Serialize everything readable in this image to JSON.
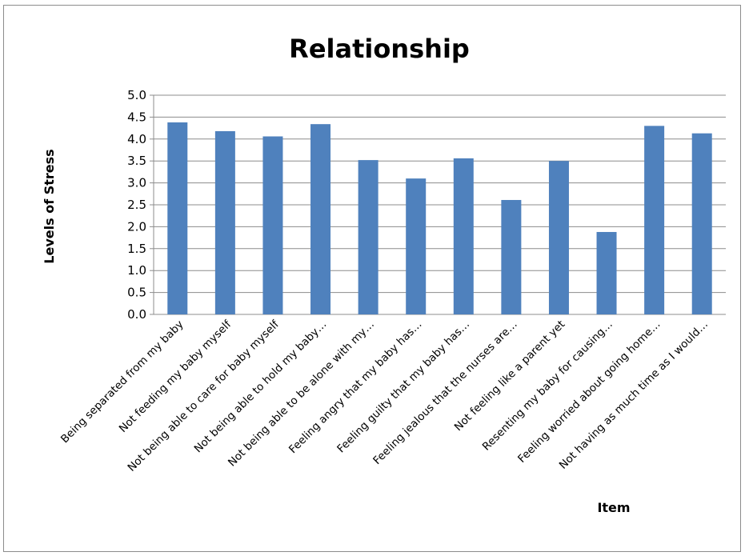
{
  "chart_data": {
    "type": "bar",
    "title": "Relationship",
    "xlabel": "Item",
    "ylabel": "Levels of Stress",
    "categories": [
      "Being separated from my baby",
      "Not feeding my baby myself",
      "Not being able to care for baby myself",
      "Not being able to hold my baby…",
      "Not being able to be alone with my…",
      "Feeling angry that my baby has…",
      "Feeling guilty that my baby has…",
      "Feeling jealous that the nurses are…",
      "Not feeling like a parent yet",
      "Resenting my baby for causing…",
      "Feeling worried about going home…",
      "Not having as much time as I would…"
    ],
    "values": [
      4.38,
      4.18,
      4.06,
      4.34,
      3.52,
      3.1,
      3.56,
      2.61,
      3.5,
      1.88,
      4.3,
      4.13
    ],
    "yticks": [
      "0.0",
      "0.5",
      "1.0",
      "1.5",
      "2.0",
      "2.5",
      "3.0",
      "3.5",
      "4.0",
      "4.5",
      "5.0"
    ],
    "ylim": [
      0,
      5
    ],
    "grid": true,
    "legend": "none",
    "bar_color": "#4f81bd",
    "grid_color": "#8c8c8c"
  }
}
